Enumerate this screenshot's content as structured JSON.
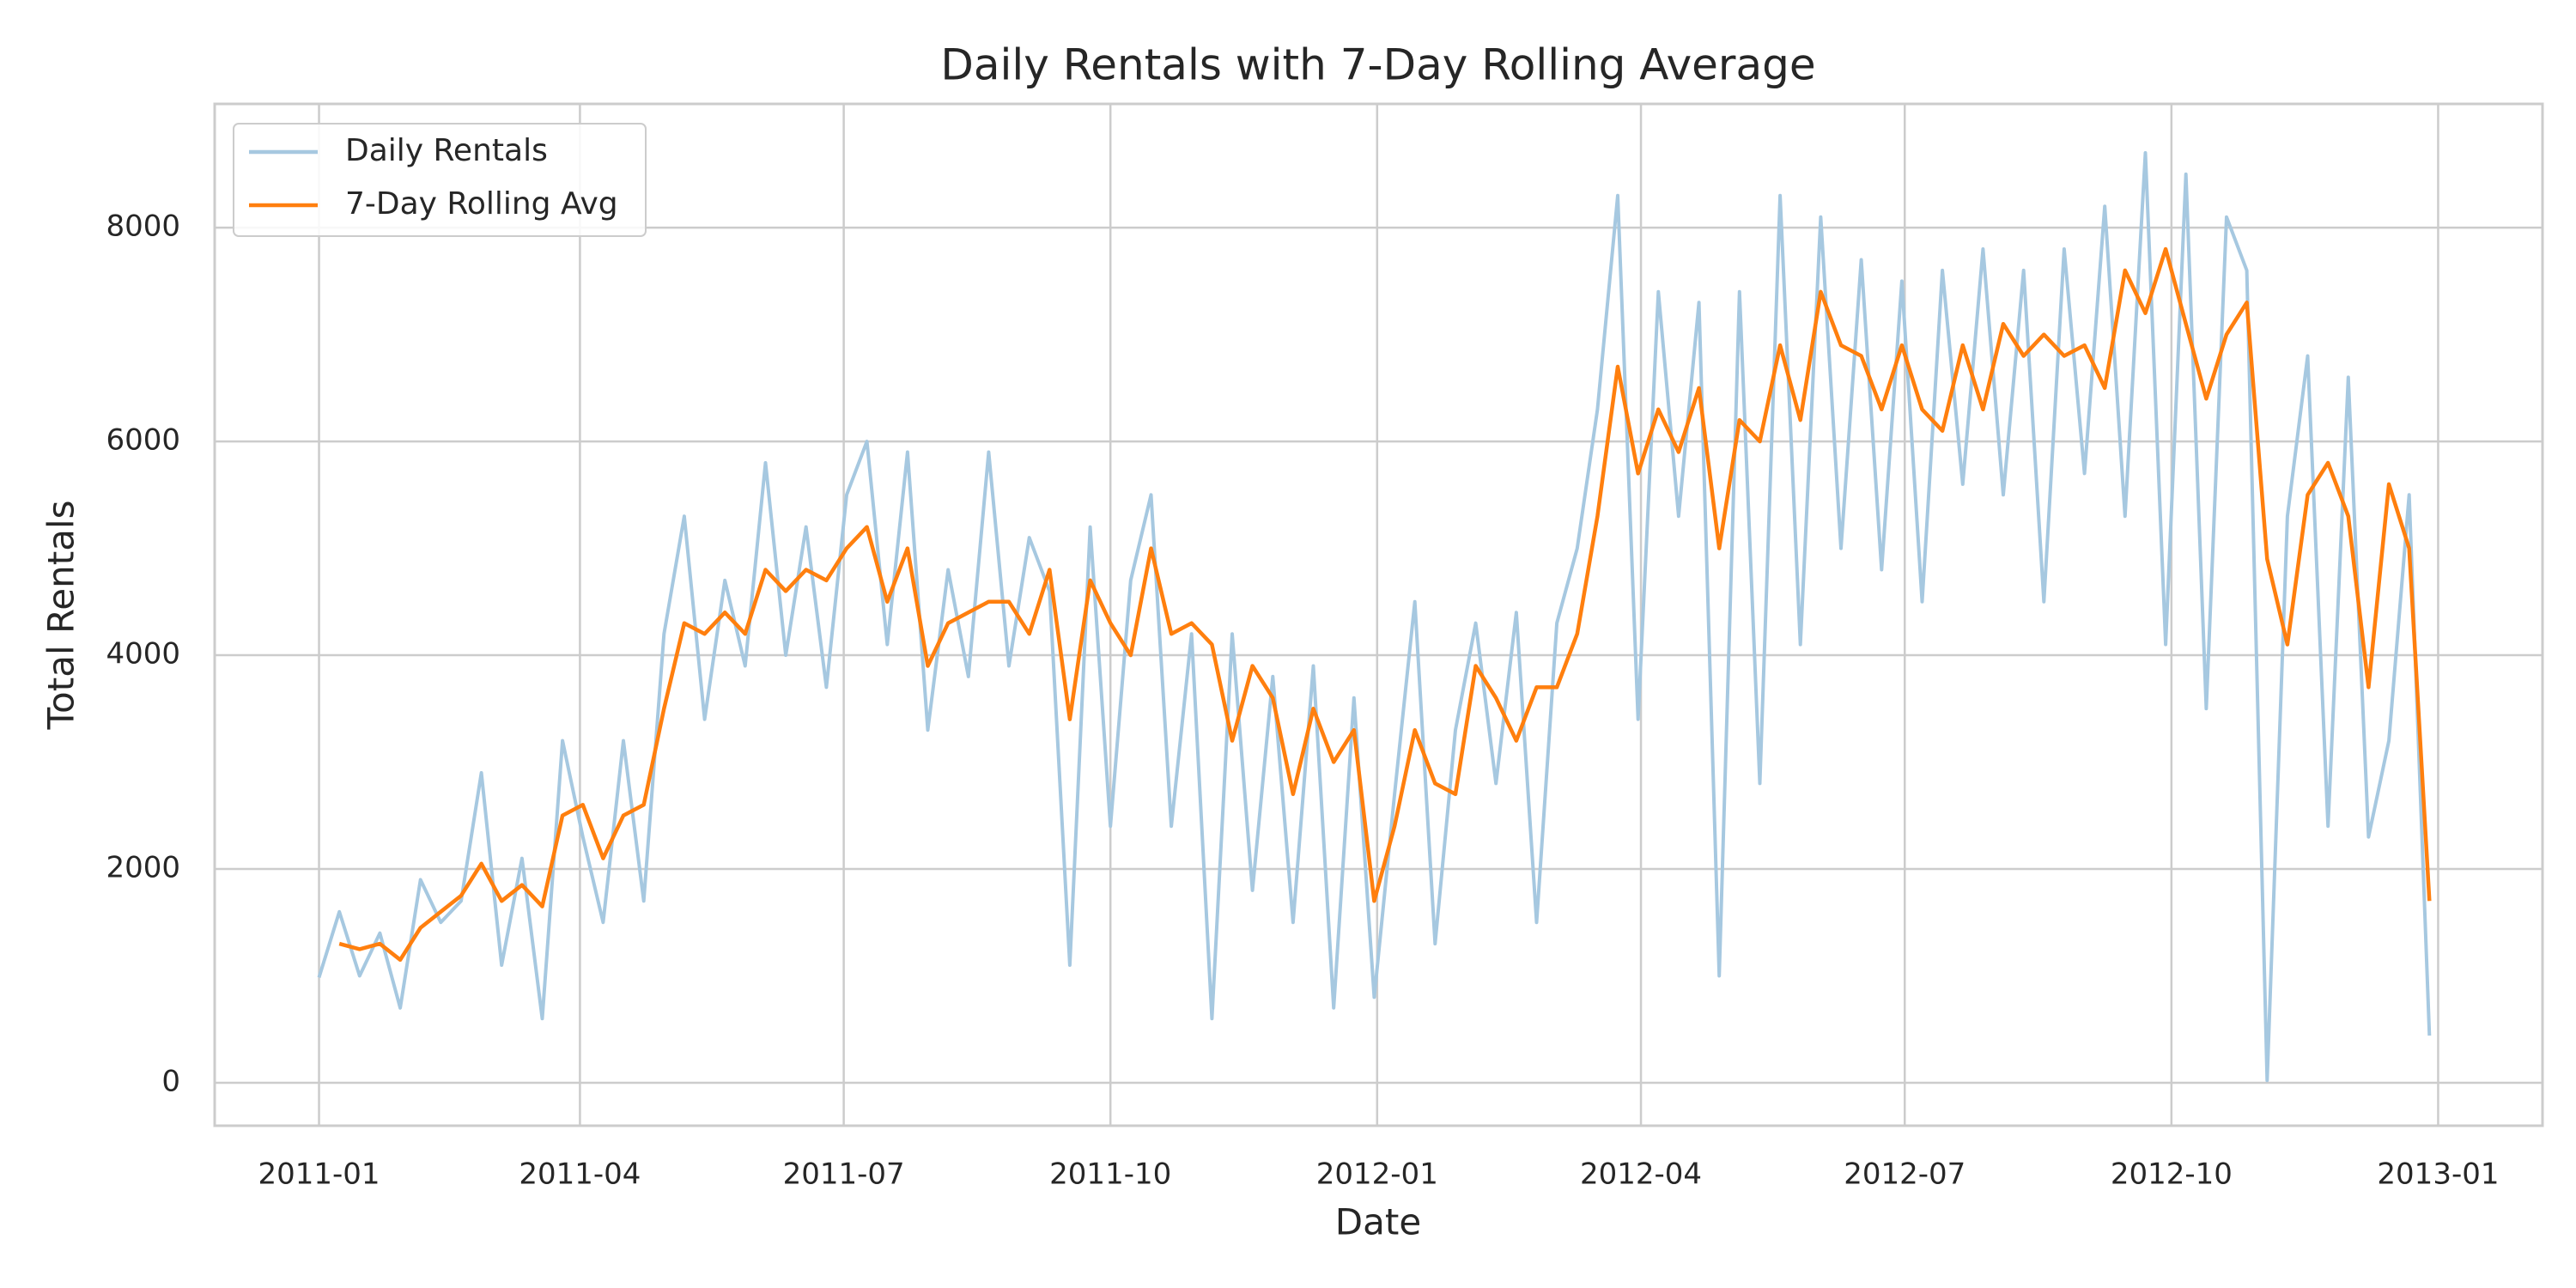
{
  "chart_data": {
    "type": "line",
    "title": "Daily Rentals with 7-Day Rolling Average",
    "xlabel": "Date",
    "ylabel": "Total Rentals",
    "x": [
      0,
      7,
      14,
      21,
      28,
      35,
      42,
      49,
      56,
      63,
      70,
      77,
      84,
      91,
      98,
      105,
      112,
      119,
      126,
      133,
      140,
      147,
      154,
      161,
      168,
      175,
      182,
      189,
      196,
      203,
      210,
      217,
      224,
      231,
      238,
      245,
      252,
      259,
      266,
      273,
      280,
      287,
      294,
      301,
      308,
      315,
      322,
      329,
      336,
      343,
      350,
      357,
      364,
      371,
      378,
      385,
      392,
      399,
      406,
      413,
      420,
      427,
      434,
      441,
      448,
      455,
      462,
      469,
      476,
      483,
      490,
      497,
      504,
      511,
      518,
      525,
      532,
      539,
      546,
      553,
      560,
      567,
      574,
      581,
      588,
      595,
      602,
      609,
      616,
      623,
      630,
      637,
      644,
      651,
      658,
      665,
      672,
      679,
      686,
      693,
      700,
      707,
      714,
      721,
      728
    ],
    "series": [
      {
        "name": "Daily Rentals",
        "color": "#a6c8e0",
        "values": [
          985,
          1600,
          1000,
          1400,
          700,
          1900,
          1500,
          1700,
          2900,
          1100,
          2100,
          600,
          3200,
          2300,
          1500,
          3200,
          1700,
          4200,
          5300,
          3400,
          4700,
          3900,
          5800,
          4000,
          5200,
          3700,
          5500,
          6000,
          4100,
          5900,
          3300,
          4800,
          3800,
          5900,
          3900,
          5100,
          4600,
          1100,
          5200,
          2400,
          4700,
          5500,
          2400,
          4200,
          600,
          4200,
          1800,
          3800,
          1500,
          3900,
          700,
          3600,
          800,
          2700,
          4500,
          1300,
          3300,
          4300,
          2800,
          4400,
          1500,
          4300,
          5000,
          6300,
          8300,
          3400,
          7400,
          5300,
          7300,
          1000,
          7400,
          2800,
          8300,
          4100,
          8100,
          5000,
          7700,
          4800,
          7500,
          4500,
          7600,
          5600,
          7800,
          5500,
          7600,
          4500,
          7800,
          5700,
          8200,
          5300,
          8700,
          4100,
          8500,
          3500,
          8100,
          7600,
          22,
          5300,
          6800,
          2400,
          6600,
          2300,
          3200,
          5500,
          441
        ]
      },
      {
        "name": "7-Day Rolling Avg",
        "color": "#ff7f0e",
        "values": [
          null,
          1300,
          1250,
          1300,
          1150,
          1450,
          1600,
          1750,
          2050,
          1700,
          1850,
          1650,
          2500,
          2600,
          2100,
          2500,
          2600,
          3500,
          4300,
          4200,
          4400,
          4200,
          4800,
          4600,
          4800,
          4700,
          5000,
          5200,
          4500,
          5000,
          3900,
          4300,
          4400,
          4500,
          4500,
          4200,
          4800,
          3400,
          4700,
          4300,
          4000,
          5000,
          4200,
          4300,
          4100,
          3200,
          3900,
          3600,
          2700,
          3500,
          3000,
          3300,
          1700,
          2400,
          3300,
          2800,
          2700,
          3900,
          3600,
          3200,
          3700,
          3700,
          4200,
          5300,
          6700,
          5700,
          6300,
          5900,
          6500,
          5000,
          6200,
          6000,
          6900,
          6200,
          7400,
          6900,
          6800,
          6300,
          6900,
          6300,
          6100,
          6900,
          6300,
          7100,
          6800,
          7000,
          6800,
          6900,
          6500,
          7600,
          7200,
          7800,
          7100,
          6400,
          7000,
          7300,
          4900,
          4100,
          5500,
          5800,
          5300,
          3700,
          5600,
          5000,
          1700
        ]
      }
    ],
    "xlim": [
      -36,
      767
    ],
    "ylim": [
      -402,
      9158
    ],
    "xticks": [
      {
        "value": 0,
        "label": "2011-01"
      },
      {
        "value": 90,
        "label": "2011-04"
      },
      {
        "value": 181,
        "label": "2011-07"
      },
      {
        "value": 273,
        "label": "2011-10"
      },
      {
        "value": 365,
        "label": "2012-01"
      },
      {
        "value": 456,
        "label": "2012-04"
      },
      {
        "value": 547,
        "label": "2012-07"
      },
      {
        "value": 639,
        "label": "2012-10"
      },
      {
        "value": 731,
        "label": "2013-01"
      }
    ],
    "yticks": [
      0,
      2000,
      4000,
      6000,
      8000
    ],
    "grid": true,
    "legend": "upper left"
  }
}
